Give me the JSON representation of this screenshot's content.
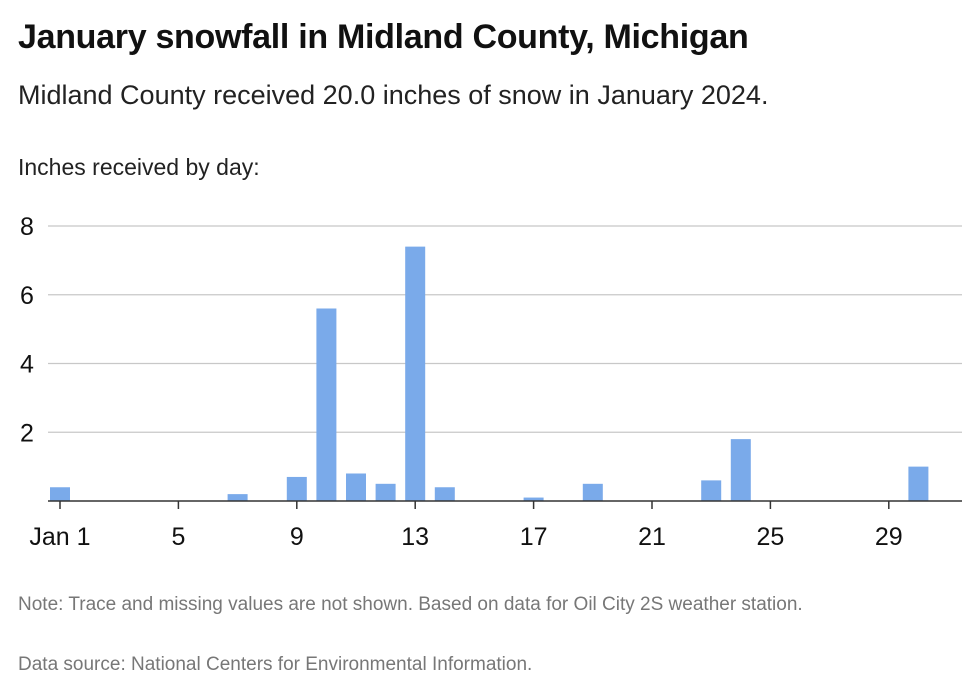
{
  "header": {
    "title": "January snowfall in Midland County, Michigan",
    "subtitle": "Midland County received 20.0 inches of snow in January 2024.",
    "axis_caption": "Inches received by day:"
  },
  "footer": {
    "note": "Note: Trace and missing values are not shown. Based on data for Oil City 2S weather station.",
    "source": "Data source: National Centers for Environmental Information."
  },
  "colors": {
    "bar": "#7aaaea",
    "grid": "#c8c8c8",
    "axis": "#333333"
  },
  "chart_data": {
    "type": "bar",
    "title": "January snowfall in Midland County, Michigan",
    "ylabel": "Inches received by day:",
    "xlabel": "",
    "ylim": [
      0,
      8
    ],
    "yticks": [
      2,
      4,
      6,
      8
    ],
    "grid": true,
    "x_tick_days": [
      1,
      5,
      9,
      13,
      17,
      21,
      25,
      29
    ],
    "x_tick_labels": [
      "Jan 1",
      "5",
      "9",
      "13",
      "17",
      "21",
      "25",
      "29"
    ],
    "days": [
      1,
      2,
      3,
      4,
      5,
      6,
      7,
      8,
      9,
      10,
      11,
      12,
      13,
      14,
      15,
      16,
      17,
      18,
      19,
      20,
      21,
      22,
      23,
      24,
      25,
      26,
      27,
      28,
      29,
      30,
      31
    ],
    "values": [
      0.4,
      0,
      0,
      0,
      0,
      0,
      0.2,
      0,
      0.7,
      5.6,
      0.8,
      0.5,
      7.4,
      0.4,
      0,
      0,
      0.1,
      0,
      0.5,
      0,
      0,
      0,
      0.6,
      1.8,
      0,
      0,
      0,
      0,
      0,
      1.0,
      0
    ]
  }
}
